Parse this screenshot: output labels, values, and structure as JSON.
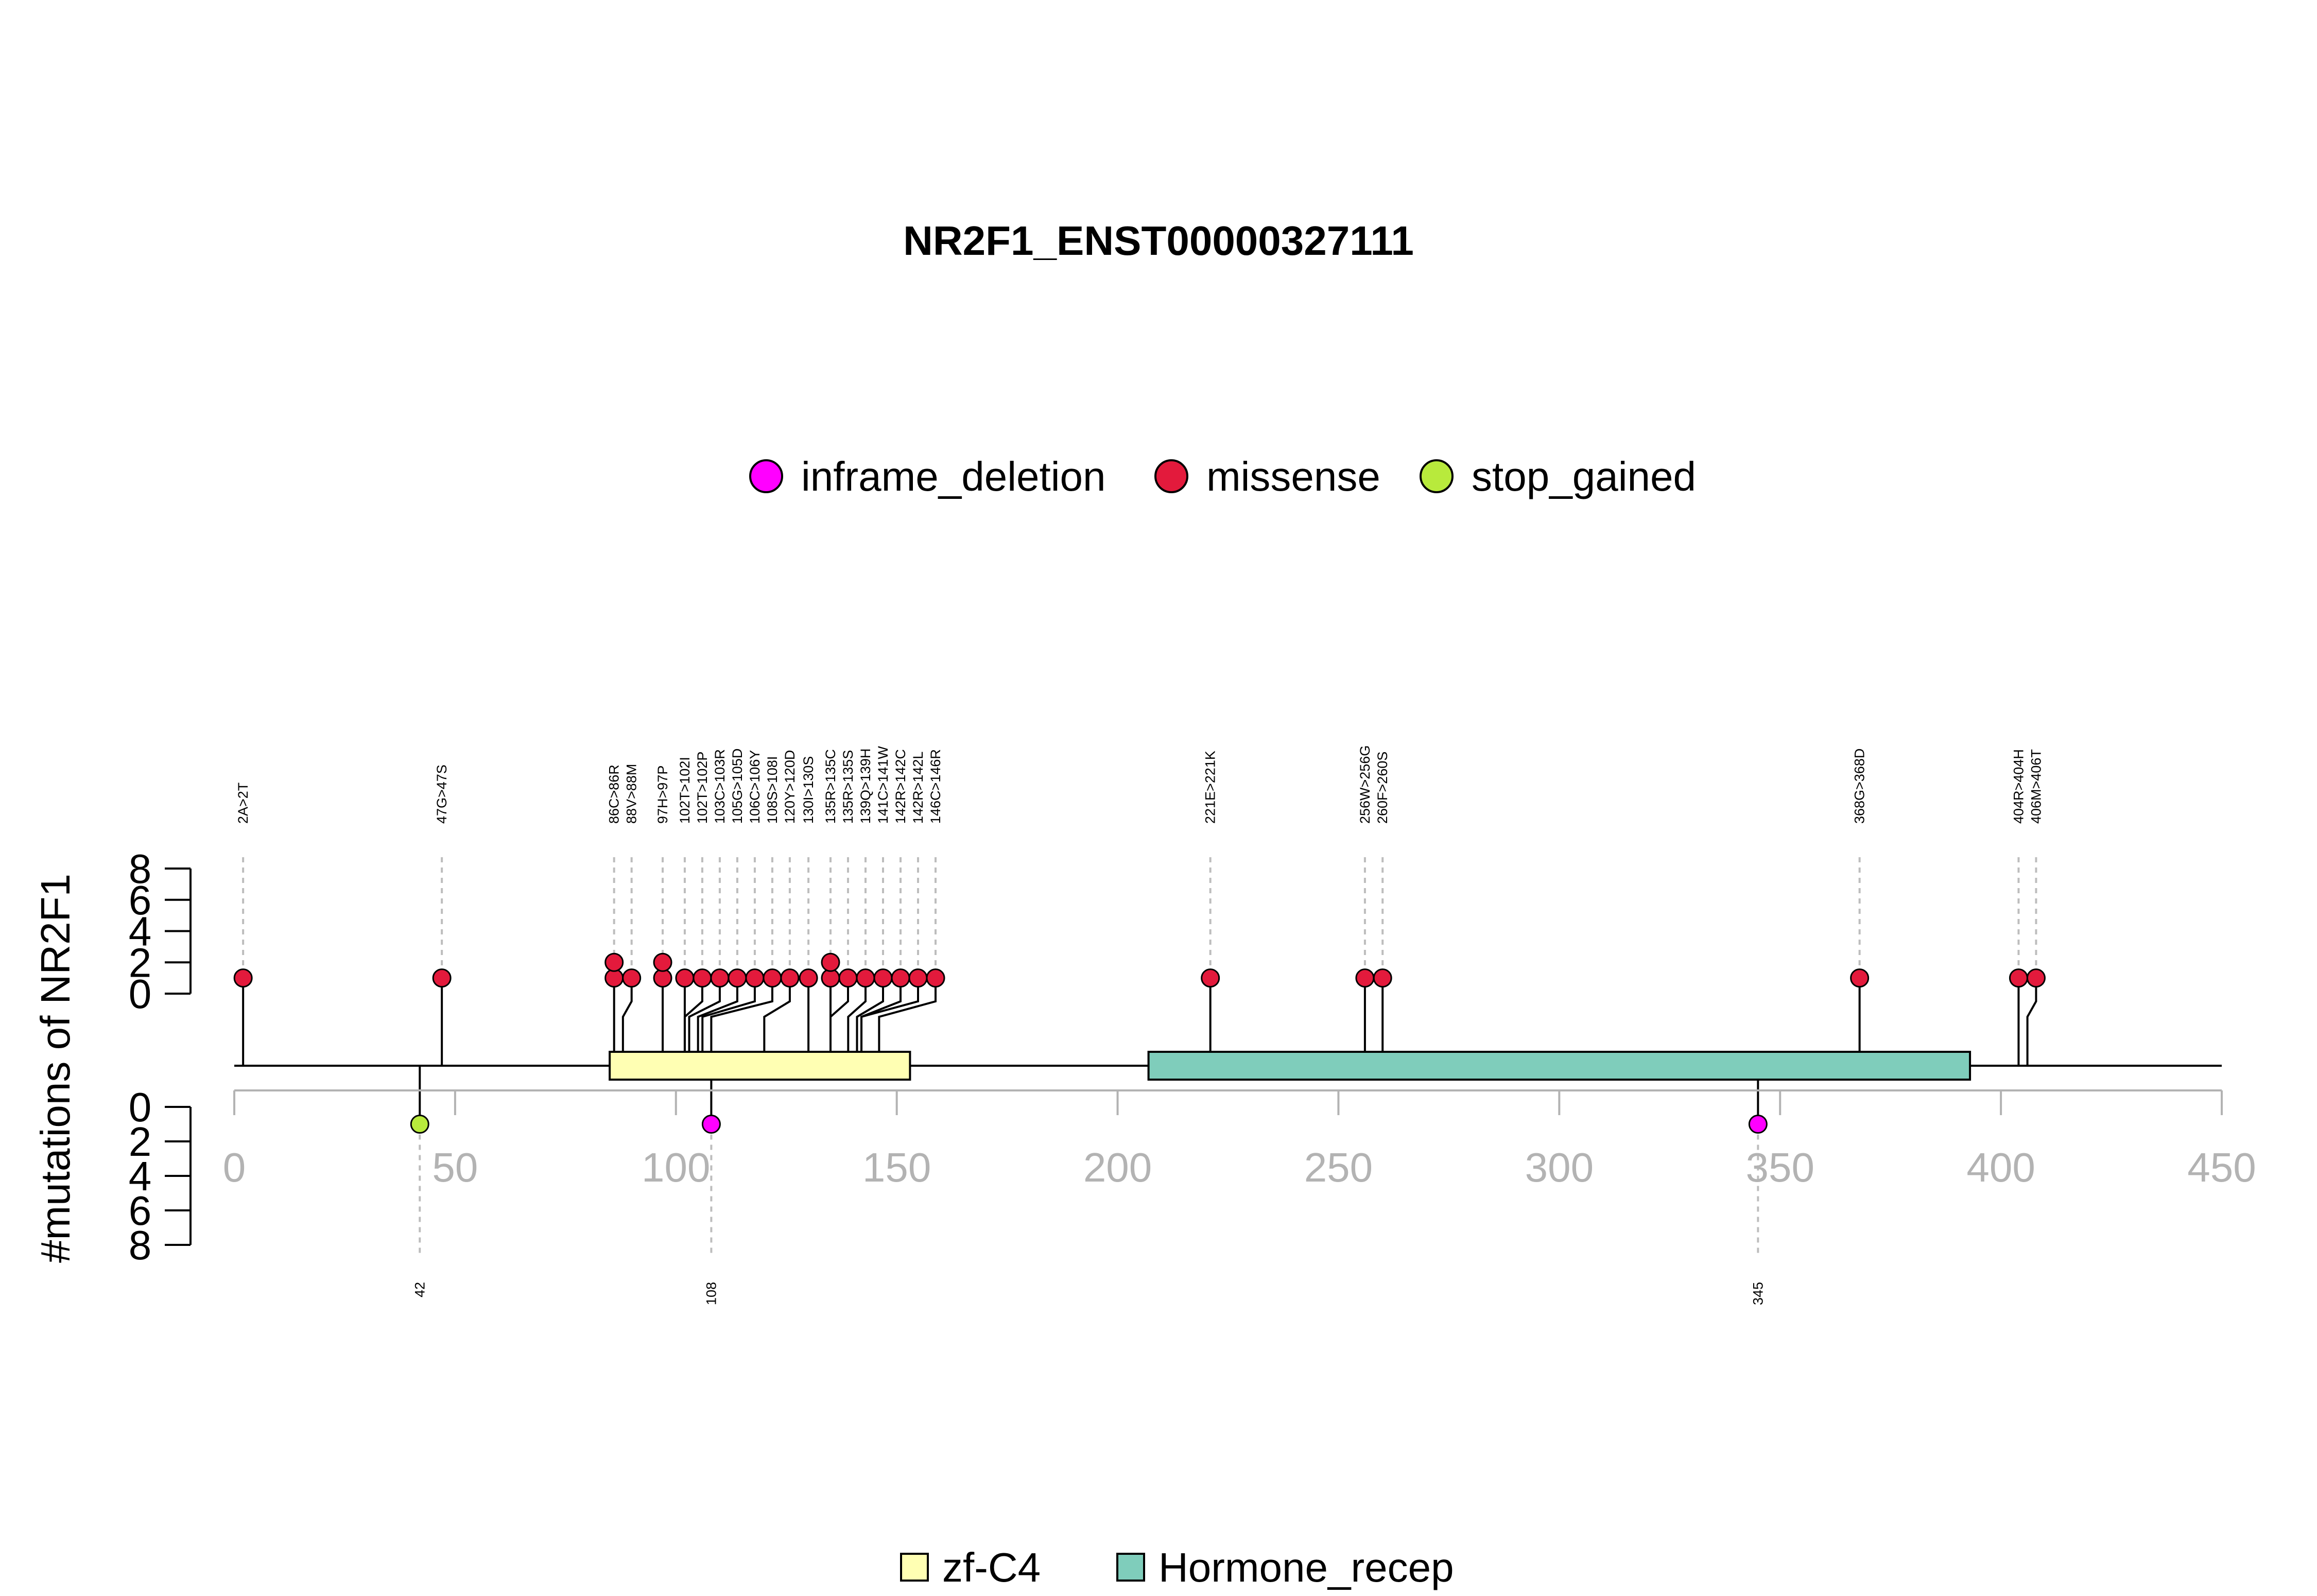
{
  "chart_data": {
    "type": "lollipop",
    "title": "NR2F1_ENST00000327111",
    "ylabel": "#mutations of NR2F1",
    "xlim": [
      0,
      450
    ],
    "x_ticks": [
      0,
      50,
      100,
      150,
      200,
      250,
      300,
      350,
      400,
      450
    ],
    "y_ticks_upper": [
      8,
      6,
      4,
      2,
      0
    ],
    "y_ticks_lower": [
      0,
      2,
      4,
      6,
      8
    ],
    "legend_mutation_types": [
      {
        "name": "inframe_deletion",
        "color": "#ff00ff"
      },
      {
        "name": "missense",
        "color": "#e31a3c"
      },
      {
        "name": "stop_gained",
        "color": "#b8ea3c"
      }
    ],
    "domains": [
      {
        "name": "zf-C4",
        "start": 85,
        "end": 153,
        "color": "#ffffb3"
      },
      {
        "name": "Hormone_recep",
        "start": 207,
        "end": 393,
        "color": "#7fcdbb"
      }
    ],
    "upper_mutations": [
      {
        "label": "2A>2T",
        "position": 2,
        "count": 1,
        "type": "missense"
      },
      {
        "label": "47G>47S",
        "position": 47,
        "count": 1,
        "type": "missense"
      },
      {
        "label": "86C>86R",
        "position": 86,
        "count": 2,
        "type": "missense"
      },
      {
        "label": "88V>88M",
        "position": 88,
        "count": 1,
        "type": "missense"
      },
      {
        "label": "97H>97P",
        "position": 97,
        "count": 2,
        "type": "missense"
      },
      {
        "label": "102T>102I",
        "position": 102,
        "count": 1,
        "type": "missense"
      },
      {
        "label": "102T>102P",
        "position": 102,
        "count": 1,
        "type": "missense"
      },
      {
        "label": "103C>103R",
        "position": 103,
        "count": 1,
        "type": "missense"
      },
      {
        "label": "105G>105D",
        "position": 105,
        "count": 1,
        "type": "missense"
      },
      {
        "label": "106C>106Y",
        "position": 106,
        "count": 1,
        "type": "missense"
      },
      {
        "label": "108S>108I",
        "position": 108,
        "count": 1,
        "type": "missense"
      },
      {
        "label": "120Y>120D",
        "position": 120,
        "count": 1,
        "type": "missense"
      },
      {
        "label": "130I>130S",
        "position": 130,
        "count": 1,
        "type": "missense"
      },
      {
        "label": "135R>135C",
        "position": 135,
        "count": 2,
        "type": "missense"
      },
      {
        "label": "135R>135S",
        "position": 135,
        "count": 1,
        "type": "missense"
      },
      {
        "label": "139Q>139H",
        "position": 139,
        "count": 1,
        "type": "missense"
      },
      {
        "label": "141C>141W",
        "position": 141,
        "count": 1,
        "type": "missense"
      },
      {
        "label": "142R>142C",
        "position": 142,
        "count": 1,
        "type": "missense"
      },
      {
        "label": "142R>142L",
        "position": 142,
        "count": 1,
        "type": "missense"
      },
      {
        "label": "146C>146R",
        "position": 146,
        "count": 1,
        "type": "missense"
      },
      {
        "label": "221E>221K",
        "position": 221,
        "count": 1,
        "type": "missense"
      },
      {
        "label": "256W>256G",
        "position": 256,
        "count": 1,
        "type": "missense"
      },
      {
        "label": "260F>260S",
        "position": 260,
        "count": 1,
        "type": "missense"
      },
      {
        "label": "368G>368D",
        "position": 368,
        "count": 1,
        "type": "missense"
      },
      {
        "label": "404R>404H",
        "position": 404,
        "count": 1,
        "type": "missense"
      },
      {
        "label": "406M>406T",
        "position": 406,
        "count": 1,
        "type": "missense"
      }
    ],
    "lower_mutations": [
      {
        "label": "42",
        "position": 42,
        "count": 1,
        "type": "stop_gained"
      },
      {
        "label": "108",
        "position": 108,
        "count": 1,
        "type": "inframe_deletion"
      },
      {
        "label": "345",
        "position": 345,
        "count": 1,
        "type": "inframe_deletion"
      }
    ]
  }
}
